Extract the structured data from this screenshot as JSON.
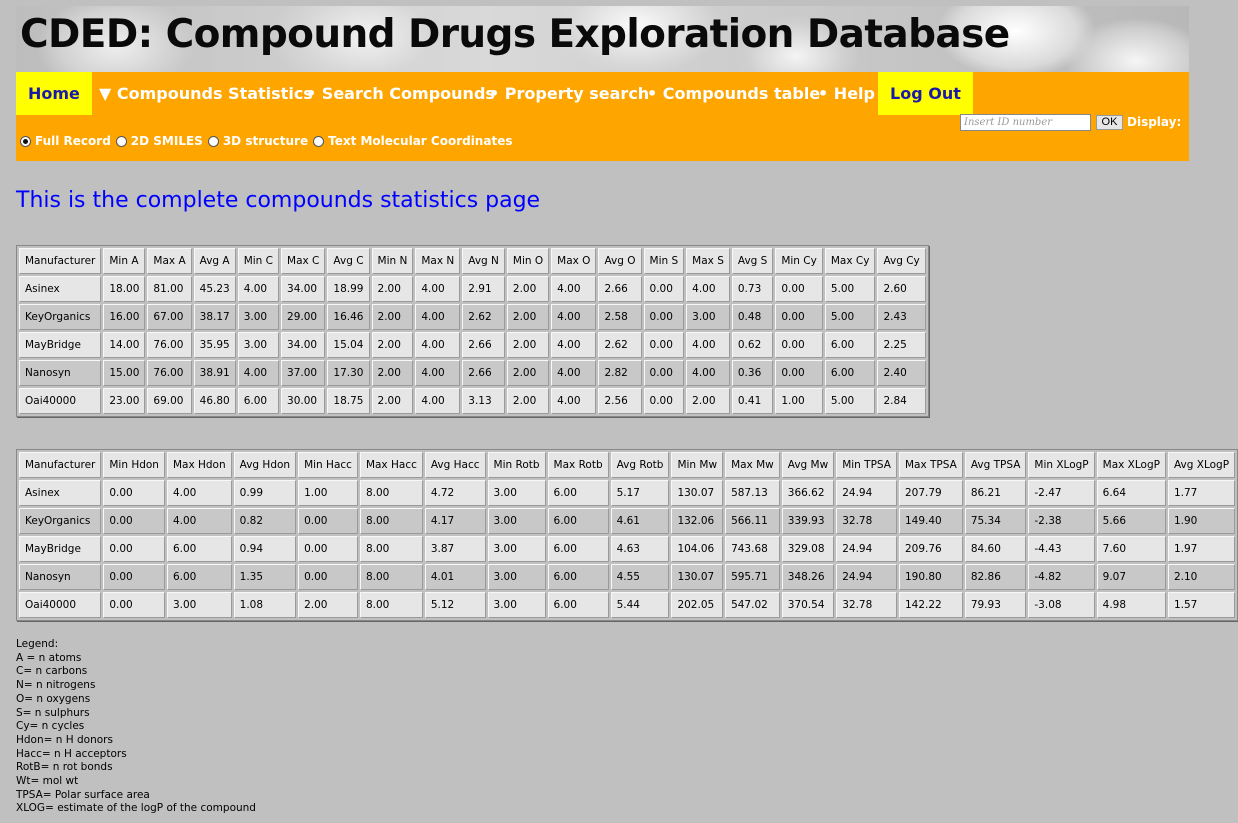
{
  "banner": {
    "title": "CDED: Compound Drugs Exploration Database"
  },
  "nav": {
    "home": "Home",
    "compounds_statistics": "▼ Compounds Statistics",
    "search_compounds": "• Search Compounds",
    "property_search": "• Property search",
    "compounds_table": "• Compounds table",
    "help": "• Help",
    "log_out": "Log Out"
  },
  "display_options": {
    "selected": "Full Record",
    "options": [
      "Full Record",
      "2D SMILES",
      "3D structure",
      "Text Molecular Coordinates"
    ]
  },
  "id_search": {
    "placeholder": "Insert ID number",
    "ok_label": "OK",
    "display_label": "Display:"
  },
  "page": {
    "heading": "This is the complete compounds statistics page"
  },
  "table1": {
    "headers": [
      "Manufacturer",
      "Min A",
      "Max A",
      "Avg A",
      "Min C",
      "Max C",
      "Avg C",
      "Min N",
      "Max N",
      "Avg N",
      "Min O",
      "Max O",
      "Avg O",
      "Min S",
      "Max S",
      "Avg S",
      "Min Cy",
      "Max Cy",
      "Avg Cy"
    ],
    "rows": [
      [
        "Asinex",
        "18.00",
        "81.00",
        "45.23",
        "4.00",
        "34.00",
        "18.99",
        "2.00",
        "4.00",
        "2.91",
        "2.00",
        "4.00",
        "2.66",
        "0.00",
        "4.00",
        "0.73",
        "0.00",
        "5.00",
        "2.60"
      ],
      [
        "KeyOrganics",
        "16.00",
        "67.00",
        "38.17",
        "3.00",
        "29.00",
        "16.46",
        "2.00",
        "4.00",
        "2.62",
        "2.00",
        "4.00",
        "2.58",
        "0.00",
        "3.00",
        "0.48",
        "0.00",
        "5.00",
        "2.43"
      ],
      [
        "MayBridge",
        "14.00",
        "76.00",
        "35.95",
        "3.00",
        "34.00",
        "15.04",
        "2.00",
        "4.00",
        "2.66",
        "2.00",
        "4.00",
        "2.62",
        "0.00",
        "4.00",
        "0.62",
        "0.00",
        "6.00",
        "2.25"
      ],
      [
        "Nanosyn",
        "15.00",
        "76.00",
        "38.91",
        "4.00",
        "37.00",
        "17.30",
        "2.00",
        "4.00",
        "2.66",
        "2.00",
        "4.00",
        "2.82",
        "0.00",
        "4.00",
        "0.36",
        "0.00",
        "6.00",
        "2.40"
      ],
      [
        "Oai40000",
        "23.00",
        "69.00",
        "46.80",
        "6.00",
        "30.00",
        "18.75",
        "2.00",
        "4.00",
        "3.13",
        "2.00",
        "4.00",
        "2.56",
        "0.00",
        "2.00",
        "0.41",
        "1.00",
        "5.00",
        "2.84"
      ]
    ]
  },
  "table2": {
    "headers": [
      "Manufacturer",
      "Min Hdon",
      "Max Hdon",
      "Avg Hdon",
      "Min Hacc",
      "Max Hacc",
      "Avg Hacc",
      "Min Rotb",
      "Max Rotb",
      "Avg Rotb",
      "Min Mw",
      "Max Mw",
      "Avg Mw",
      "Min TPSA",
      "Max TPSA",
      "Avg TPSA",
      "Min XLogP",
      "Max XLogP",
      "Avg XLogP"
    ],
    "rows": [
      [
        "Asinex",
        "0.00",
        "4.00",
        "0.99",
        "1.00",
        "8.00",
        "4.72",
        "3.00",
        "6.00",
        "5.17",
        "130.07",
        "587.13",
        "366.62",
        "24.94",
        "207.79",
        "86.21",
        "-2.47",
        "6.64",
        "1.77"
      ],
      [
        "KeyOrganics",
        "0.00",
        "4.00",
        "0.82",
        "0.00",
        "8.00",
        "4.17",
        "3.00",
        "6.00",
        "4.61",
        "132.06",
        "566.11",
        "339.93",
        "32.78",
        "149.40",
        "75.34",
        "-2.38",
        "5.66",
        "1.90"
      ],
      [
        "MayBridge",
        "0.00",
        "6.00",
        "0.94",
        "0.00",
        "8.00",
        "3.87",
        "3.00",
        "6.00",
        "4.63",
        "104.06",
        "743.68",
        "329.08",
        "24.94",
        "209.76",
        "84.60",
        "-4.43",
        "7.60",
        "1.97"
      ],
      [
        "Nanosyn",
        "0.00",
        "6.00",
        "1.35",
        "0.00",
        "8.00",
        "4.01",
        "3.00",
        "6.00",
        "4.55",
        "130.07",
        "595.71",
        "348.26",
        "24.94",
        "190.80",
        "82.86",
        "-4.82",
        "9.07",
        "2.10"
      ],
      [
        "Oai40000",
        "0.00",
        "3.00",
        "1.08",
        "2.00",
        "8.00",
        "5.12",
        "3.00",
        "6.00",
        "5.44",
        "202.05",
        "547.02",
        "370.54",
        "32.78",
        "142.22",
        "79.93",
        "-3.08",
        "4.98",
        "1.57"
      ]
    ]
  },
  "legend": {
    "lines": [
      "Legend:",
      "A = n atoms",
      "C= n carbons",
      "N= n nitrogens",
      "O= n oxygens",
      "S= n sulphurs",
      "Cy= n cycles",
      "Hdon= n H donors",
      "Hacc= n H acceptors",
      "RotB= n rot bonds",
      "Wt= mol wt",
      "TPSA= Polar surface area",
      "XLOG= estimate of the logP of the compound"
    ]
  }
}
